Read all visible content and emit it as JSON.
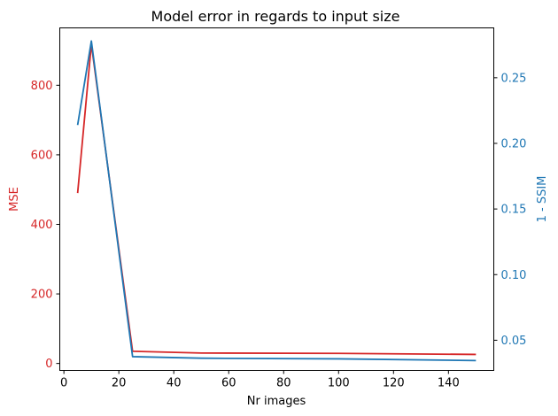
{
  "chart_data": {
    "type": "line",
    "title": "Model error in regards to input size",
    "xlabel": "Nr images",
    "x": [
      5,
      10,
      25,
      50,
      100,
      150
    ],
    "xlim": [
      -1.5,
      156.5
    ],
    "xticks": [
      0,
      20,
      40,
      60,
      80,
      100,
      120,
      140
    ],
    "grid": false,
    "colors": {
      "left_axis": "#d62728",
      "right_axis": "#1f77b4",
      "frame": "#000000"
    },
    "series": [
      {
        "axis": "left",
        "ylabel": "MSE",
        "color": "#d62728",
        "values": [
          490,
          918,
          35,
          30,
          29,
          26
        ],
        "ylim": [
          -20,
          965
        ],
        "yticks": [
          0,
          200,
          400,
          600,
          800
        ]
      },
      {
        "axis": "right",
        "ylabel": "1 - SSIM",
        "color": "#1f77b4",
        "values": [
          0.214,
          0.278,
          0.0375,
          0.0363,
          0.0358,
          0.0345
        ],
        "ylim": [
          0.027,
          0.288
        ],
        "yticks": [
          0.05,
          0.1,
          0.15,
          0.2,
          0.25
        ],
        "yticklabels": [
          "0.05",
          "0.10",
          "0.15",
          "0.20",
          "0.25"
        ]
      }
    ]
  }
}
